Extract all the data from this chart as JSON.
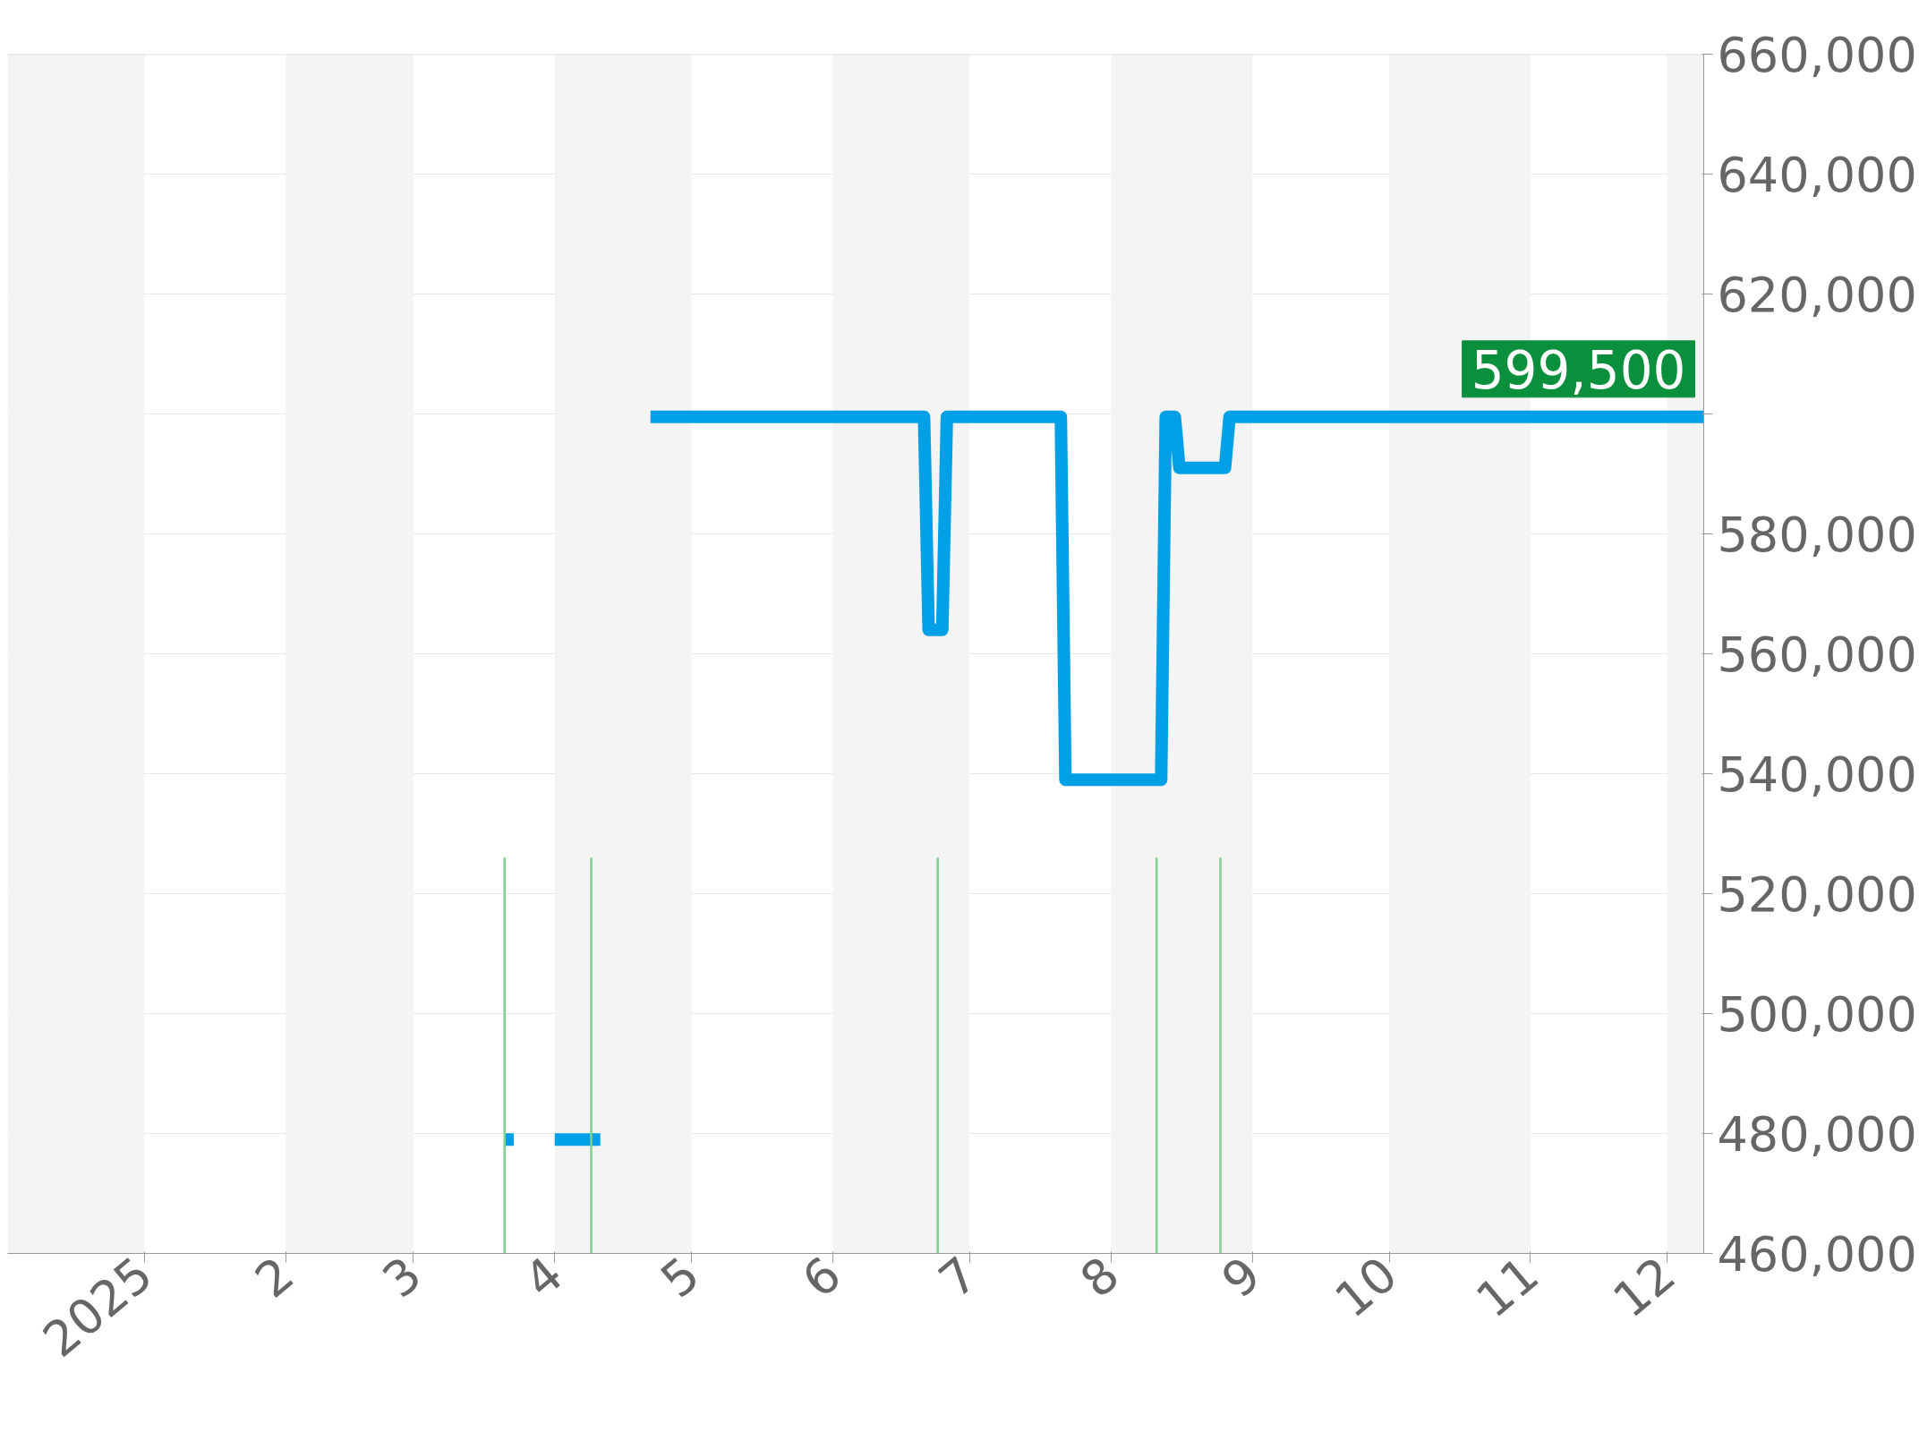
{
  "chart_data": {
    "type": "line",
    "xlim": [
      "2024-12-02",
      "2025-12-09"
    ],
    "ylim": [
      460000,
      660000
    ],
    "xticks": [
      {
        "value": "2025-01-01",
        "label": "2025"
      },
      {
        "value": "2025-02-01",
        "label": "2"
      },
      {
        "value": "2025-03-01",
        "label": "3"
      },
      {
        "value": "2025-04-01",
        "label": "4"
      },
      {
        "value": "2025-05-01",
        "label": "5"
      },
      {
        "value": "2025-06-01",
        "label": "6"
      },
      {
        "value": "2025-07-01",
        "label": "7"
      },
      {
        "value": "2025-08-01",
        "label": "8"
      },
      {
        "value": "2025-09-01",
        "label": "9"
      },
      {
        "value": "2025-10-01",
        "label": "10"
      },
      {
        "value": "2025-11-01",
        "label": "11"
      },
      {
        "value": "2025-12-01",
        "label": "12"
      }
    ],
    "yticks": [
      {
        "value": 460000,
        "label": "460,000"
      },
      {
        "value": 480000,
        "label": "480,000"
      },
      {
        "value": 500000,
        "label": "500,000"
      },
      {
        "value": 520000,
        "label": "520,000"
      },
      {
        "value": 540000,
        "label": "540,000"
      },
      {
        "value": 560000,
        "label": "560,000"
      },
      {
        "value": 580000,
        "label": "580,000"
      },
      {
        "value": 600000,
        "label": null
      },
      {
        "value": 620000,
        "label": "620,000"
      },
      {
        "value": 640000,
        "label": "640,000"
      },
      {
        "value": 660000,
        "label": "660,000"
      }
    ],
    "grid": "y",
    "series": [
      {
        "color": "#00a0e6",
        "x": [
          "2025-03-21",
          "2025-03-23",
          "2025-03-27",
          "2025-04-01",
          "2025-04-11",
          "2025-04-16",
          "2025-04-22",
          "2025-06-21",
          "2025-06-22",
          "2025-06-25",
          "2025-06-26",
          "2025-07-21",
          "2025-07-22",
          "2025-08-12",
          "2025-08-13",
          "2025-08-15",
          "2025-08-16",
          "2025-08-26",
          "2025-08-27",
          "2025-12-09"
        ],
        "values": [
          479000,
          479000,
          null,
          479000,
          479000,
          null,
          599500,
          599500,
          564000,
          564000,
          599500,
          599500,
          539000,
          539000,
          599500,
          599500,
          591000,
          591000,
          599500,
          599500
        ]
      },
      {
        "type": "bar",
        "color": "#7fd18f",
        "x": [
          "2025-03-21",
          "2025-04-09",
          "2025-06-24",
          "2025-08-11",
          "2025-08-25"
        ],
        "values": [
          526000,
          526000,
          526000,
          526000,
          526000
        ]
      }
    ],
    "bands": [
      {
        "axis": "x",
        "from": "2024-12-02",
        "to": "2025-01-01",
        "color": "#f4f4f4"
      },
      {
        "axis": "x",
        "from": "2025-02-01",
        "to": "2025-03-01",
        "color": "#f4f4f4"
      },
      {
        "axis": "x",
        "from": "2025-04-01",
        "to": "2025-05-01",
        "color": "#f4f4f4"
      },
      {
        "axis": "x",
        "from": "2025-06-01",
        "to": "2025-07-01",
        "color": "#f4f4f4"
      },
      {
        "axis": "x",
        "from": "2025-08-01",
        "to": "2025-09-01",
        "color": "#f4f4f4"
      },
      {
        "axis": "x",
        "from": "2025-10-01",
        "to": "2025-11-01",
        "color": "#f4f4f4"
      },
      {
        "axis": "x",
        "from": "2025-12-01",
        "to": "2025-12-09",
        "color": "#f4f4f4"
      }
    ],
    "annotations": [
      {
        "text": "599,500",
        "x": "2025-12-09",
        "y": 599500
      }
    ]
  }
}
